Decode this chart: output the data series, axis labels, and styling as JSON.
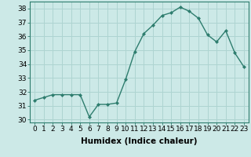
{
  "x": [
    0,
    1,
    2,
    3,
    4,
    5,
    6,
    7,
    8,
    9,
    10,
    11,
    12,
    13,
    14,
    15,
    16,
    17,
    18,
    19,
    20,
    21,
    22,
    23
  ],
  "y": [
    31.4,
    31.6,
    31.8,
    31.8,
    31.8,
    31.8,
    30.2,
    31.1,
    31.1,
    31.2,
    32.9,
    34.9,
    36.2,
    36.8,
    37.5,
    37.7,
    38.1,
    37.8,
    37.3,
    36.1,
    35.6,
    36.4,
    34.8,
    33.8
  ],
  "line_color": "#2e7d6e",
  "marker": "D",
  "marker_size": 2.0,
  "line_width": 1.0,
  "bg_color": "#cce9e7",
  "grid_color": "#aed4d1",
  "xlabel": "Humidex (Indice chaleur)",
  "xlabel_fontsize": 7.5,
  "tick_fontsize": 6.5,
  "ylim": [
    29.8,
    38.5
  ],
  "yticks": [
    30,
    31,
    32,
    33,
    34,
    35,
    36,
    37,
    38
  ],
  "xlim": [
    -0.5,
    23.5
  ],
  "xticks": [
    0,
    1,
    2,
    3,
    4,
    5,
    6,
    7,
    8,
    9,
    10,
    11,
    12,
    13,
    14,
    15,
    16,
    17,
    18,
    19,
    20,
    21,
    22,
    23
  ]
}
